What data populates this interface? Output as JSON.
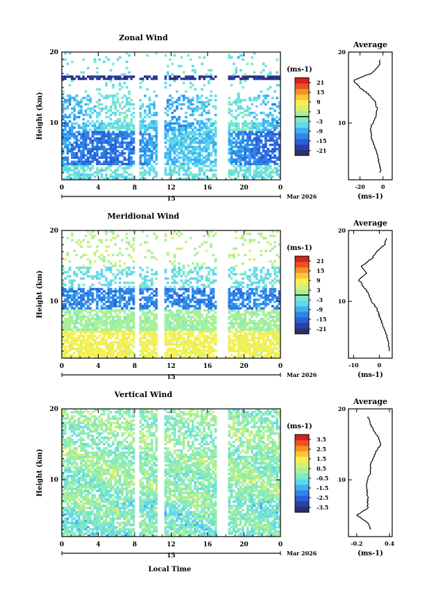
{
  "colors": {
    "scale": [
      "#2e2f6e",
      "#2b3fa8",
      "#2b5fd6",
      "#2f86e8",
      "#3fb0f0",
      "#5fd8ee",
      "#7fe8c8",
      "#a8f09a",
      "#d8f070",
      "#f8f050",
      "#f8c838",
      "#f89028",
      "#f05020",
      "#d82020"
    ],
    "average_line": "#000000",
    "axis": "#000000",
    "background": "#ffffff"
  },
  "shared": {
    "day_label": "15",
    "month_label": "Mar 2026",
    "x_ticks": [
      "0",
      "4",
      "8",
      "12",
      "16",
      "20",
      "0"
    ],
    "xlabel_bottom": "Local Time"
  },
  "chart_data": [
    {
      "type": "heatmap",
      "title": "Zonal Wind",
      "ylabel": "Height (km)",
      "y_ticks": [
        "20",
        "10"
      ],
      "ylim": [
        2,
        20
      ],
      "xlim": [
        0,
        24
      ],
      "colorbar": {
        "unit": "(ms-1)",
        "ticks": [
          "21",
          "15",
          "9",
          "3",
          "-3",
          "-9",
          "-15",
          "-21"
        ],
        "range": [
          -24,
          24
        ],
        "contour": 0
      },
      "data_gaps_hours": [
        [
          8.0,
          8.6
        ],
        [
          10.6,
          11.2
        ],
        [
          17.0,
          18.2
        ]
      ],
      "profile": {
        "title": "Average",
        "x_ticks": [
          "-20",
          "0"
        ],
        "xlim": [
          -30,
          8
        ],
        "xlabel": "(ms-1)",
        "y_ticks": [
          "20",
          "10"
        ]
      },
      "mean_profile": {
        "heights_km": [
          3,
          4,
          5,
          6,
          7,
          8,
          9,
          10,
          11,
          12,
          13,
          14,
          15,
          16,
          17,
          18,
          19
        ],
        "values": [
          -2,
          -3,
          -4,
          -6,
          -8,
          -10,
          -11,
          -9,
          -6,
          -5,
          -7,
          -12,
          -20,
          -26,
          -10,
          -4,
          -2
        ]
      }
    },
    {
      "type": "heatmap",
      "title": "Meridional Wind",
      "ylabel": "Height (km)",
      "y_ticks": [
        "20",
        "10"
      ],
      "ylim": [
        2,
        20
      ],
      "xlim": [
        0,
        24
      ],
      "colorbar": {
        "unit": "(ms-1)",
        "ticks": [
          "21",
          "15",
          "9",
          "3",
          "-3",
          "-9",
          "-15",
          "-21"
        ],
        "range": [
          -24,
          24
        ],
        "contour": 0
      },
      "data_gaps_hours": [
        [
          8.0,
          8.6
        ],
        [
          10.6,
          11.2
        ],
        [
          17.0,
          18.2
        ]
      ],
      "profile": {
        "title": "Average",
        "x_ticks": [
          "-10",
          "0"
        ],
        "xlim": [
          -12,
          5
        ],
        "xlabel": "(ms-1)",
        "y_ticks": [
          "20",
          "10"
        ]
      },
      "mean_profile": {
        "heights_km": [
          3,
          4,
          5,
          6,
          7,
          8,
          9,
          10,
          11,
          12,
          13,
          14,
          15,
          16,
          17,
          18,
          19
        ],
        "values": [
          4,
          3.5,
          3,
          2,
          1,
          0,
          -1,
          -3,
          -4,
          -6,
          -8,
          -5,
          -7,
          -3,
          -1,
          2,
          3
        ]
      }
    },
    {
      "type": "heatmap",
      "title": "Vertical Wind",
      "ylabel": "Height (km)",
      "y_ticks": [
        "20",
        "10"
      ],
      "ylim": [
        2,
        20
      ],
      "xlim": [
        0,
        24
      ],
      "colorbar": {
        "unit": "(ms-1)",
        "ticks": [
          "3.5",
          "2.5",
          "1.5",
          "0.5",
          "-0.5",
          "-1.5",
          "-2.5",
          "-3.5"
        ],
        "range": [
          -4,
          4
        ],
        "contour": null
      },
      "data_gaps_hours": [
        [
          8.0,
          8.6
        ],
        [
          10.6,
          11.2
        ],
        [
          17.0,
          18.2
        ]
      ],
      "profile": {
        "title": "Average",
        "x_ticks": [
          "-0.2",
          "0.4"
        ],
        "xlim": [
          -0.35,
          0.45
        ],
        "xlabel": "(ms-1)",
        "y_ticks": [
          "20",
          "10"
        ]
      },
      "mean_profile": {
        "heights_km": [
          3,
          4,
          5,
          6,
          7,
          8,
          9,
          10,
          11,
          12,
          13,
          14,
          15,
          16,
          17,
          18,
          19
        ],
        "values": [
          0.05,
          0.0,
          -0.2,
          0.0,
          0.0,
          0.0,
          -0.02,
          0.0,
          0.05,
          0.05,
          0.1,
          0.15,
          0.25,
          0.2,
          0.1,
          0.05,
          0.0
        ]
      }
    }
  ]
}
